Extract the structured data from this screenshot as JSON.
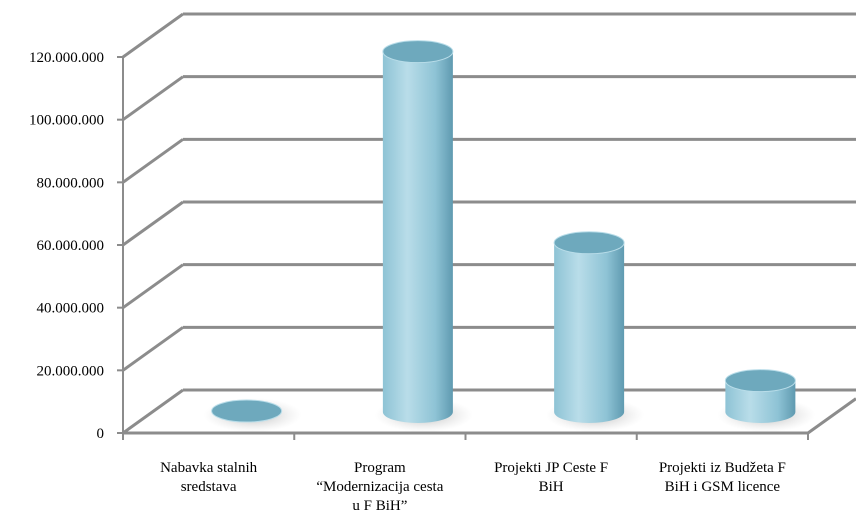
{
  "chart_data": {
    "type": "bar",
    "style": "3d-cylinder",
    "categories": [
      [
        "Nabavka stalnih",
        "sredstava"
      ],
      [
        "Program",
        "“Modernizacija cesta",
        "u F BiH”"
      ],
      [
        "Projekti JP Ceste F",
        "BiH"
      ],
      [
        "Projekti iz Budžeta F",
        "BiH i GSM licence"
      ]
    ],
    "values": [
      300000,
      115000000,
      54000000,
      10000000
    ],
    "ylim": [
      0,
      120000000
    ],
    "yticks": [
      0,
      20000000,
      40000000,
      60000000,
      80000000,
      100000000,
      120000000
    ],
    "ytick_labels": [
      "0",
      "20.000.000",
      "40.000.000",
      "60.000.000",
      "80.000.000",
      "100.000.000",
      "120.000.000"
    ],
    "title": "",
    "xlabel": "",
    "ylabel": "",
    "grid": true,
    "legend": "none",
    "colors": {
      "bar_light": "#b9dde9",
      "bar_mid": "#8ec3d5",
      "bar_dark": "#5f9ab0",
      "bar_top": "#6ea9bd",
      "grid": "#8c8c8c",
      "shadow": "#9a9a9a"
    }
  }
}
